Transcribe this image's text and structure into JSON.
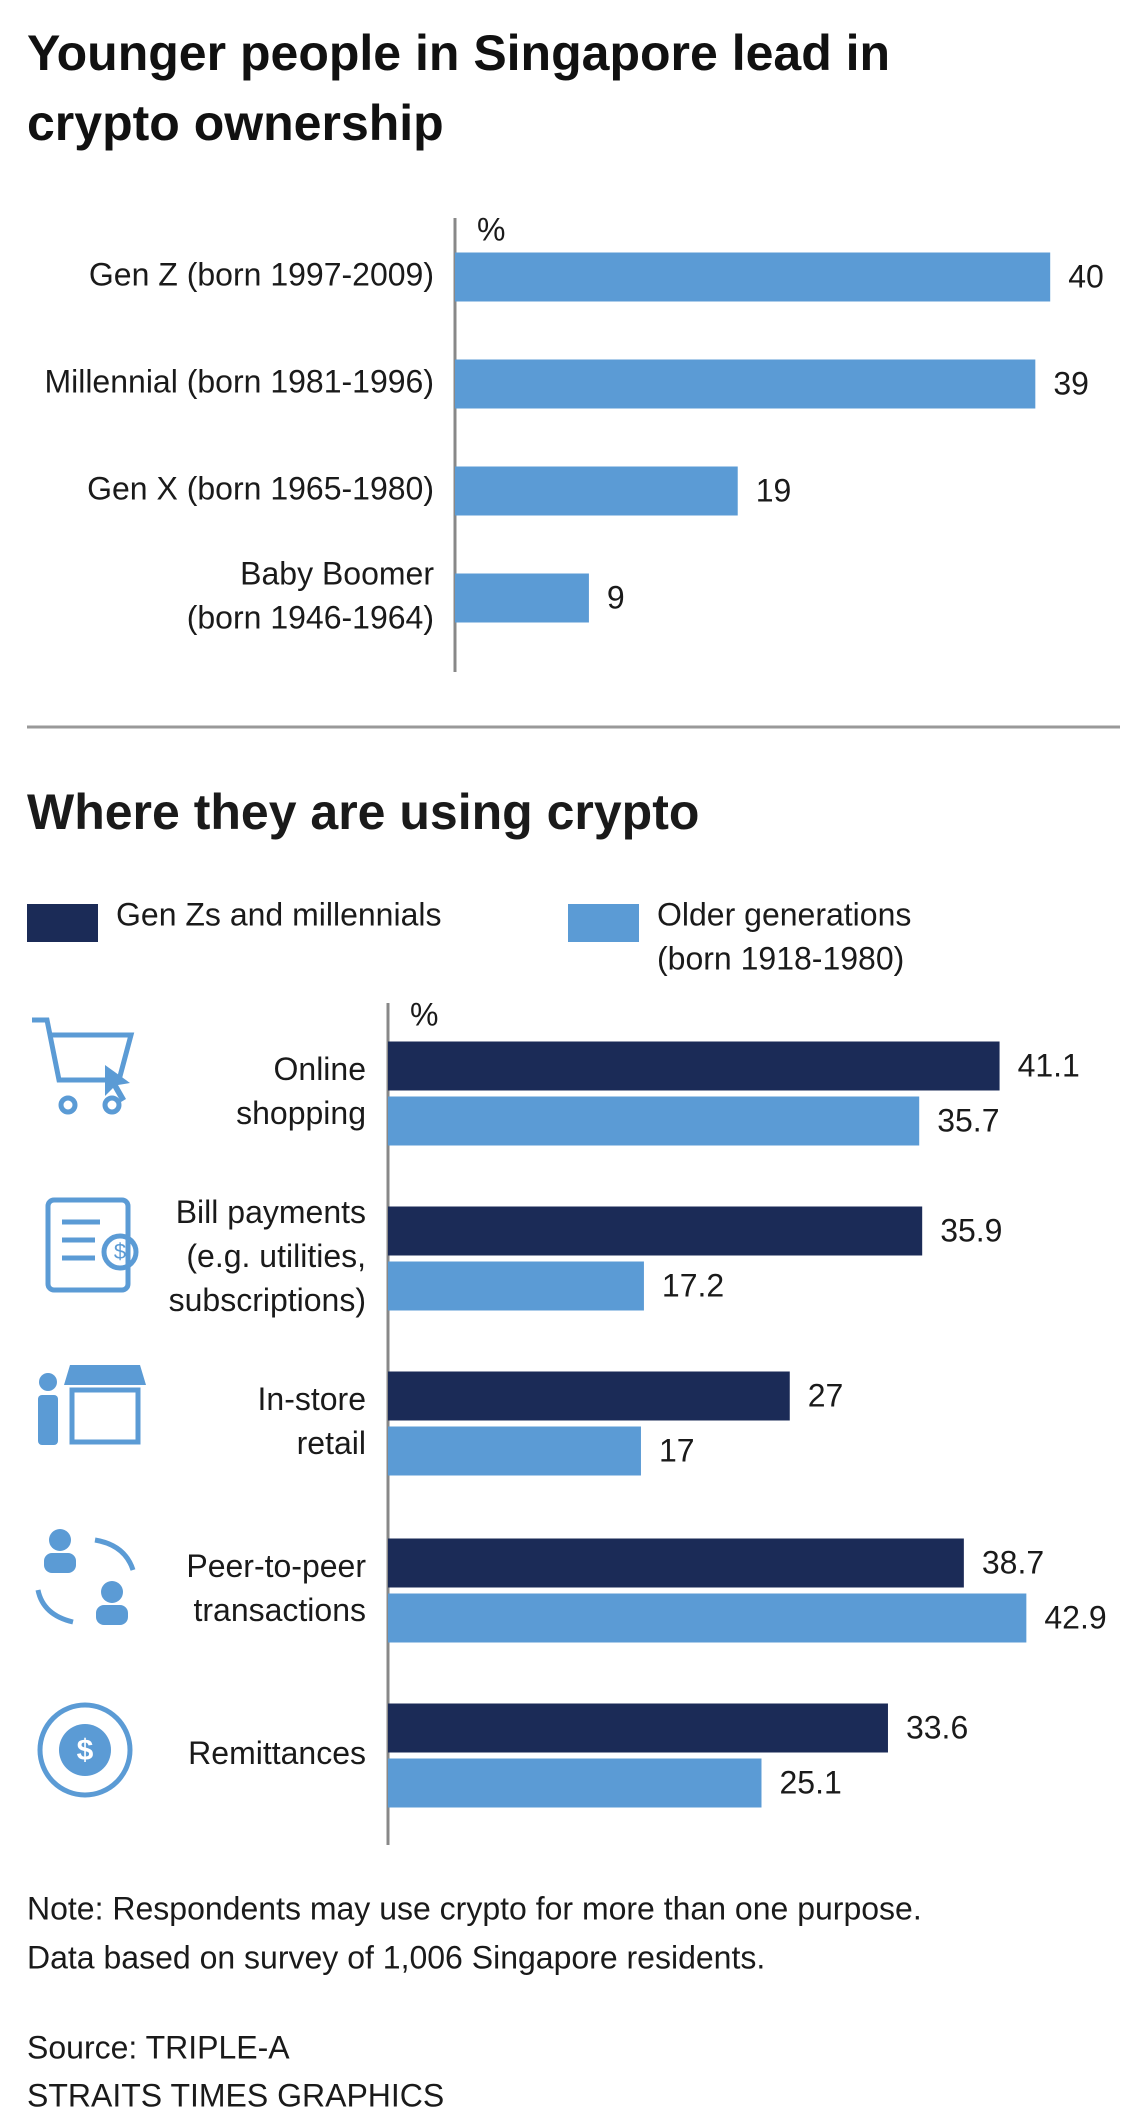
{
  "title": "Younger people in Singapore lead in crypto ownership",
  "chart_data": [
    {
      "type": "bar",
      "orientation": "horizontal",
      "unit": "%",
      "categories": [
        [
          "Gen Z (born 1997-2009)"
        ],
        [
          "Millennial (born 1981-1996)"
        ],
        [
          "Gen X (born 1965-1980)"
        ],
        [
          "Baby Boomer",
          "(born 1946-1964)"
        ]
      ],
      "series": [
        {
          "name": [],
          "color": "#5b9bd5",
          "values": [
            40,
            39,
            19,
            9
          ]
        }
      ],
      "xlim": [
        0,
        45
      ]
    },
    {
      "type": "bar",
      "orientation": "horizontal",
      "title": "Where they are using crypto",
      "unit": "%",
      "categories": [
        [
          "Online",
          "shopping"
        ],
        [
          "Bill payments",
          "(e.g. utilities,",
          "subscriptions)"
        ],
        [
          "In-store",
          "retail"
        ],
        [
          "Peer-to-peer",
          "transactions"
        ],
        [
          "Remittances"
        ]
      ],
      "series": [
        {
          "name": [
            "Gen Zs and millennials"
          ],
          "color": "#1b2b57",
          "values": [
            41.1,
            35.9,
            27,
            38.7,
            33.6
          ]
        },
        {
          "name": [
            "Older generations",
            "(born 1918-1980)"
          ],
          "color": "#5b9bd5",
          "values": [
            35.7,
            17.2,
            17,
            42.9,
            25.1
          ]
        }
      ],
      "xlim": [
        0,
        45
      ]
    }
  ],
  "note": [
    "Note: Respondents may use crypto for more than one purpose.",
    "Data based on survey of 1,006 Singapore residents."
  ],
  "source": [
    "Source: TRIPLE-A",
    "STRAITS TIMES GRAPHICS"
  ]
}
